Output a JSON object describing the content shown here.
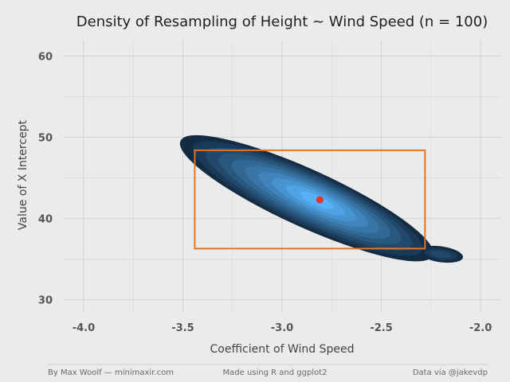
{
  "chart_data": {
    "type": "density",
    "title": "Density of Resampling of Height ~ Wind Speed (n = 100)",
    "xlabel": "Coefficient of Wind Speed",
    "ylabel": "Value of X Intercept",
    "xlim": [
      -4.1,
      -1.9
    ],
    "ylim": [
      28.5,
      62
    ],
    "x_ticks": [
      -4.0,
      -3.5,
      -3.0,
      -2.5,
      -2.0
    ],
    "x_tick_labels": [
      "-4.0",
      "-3.5",
      "-3.0",
      "-2.5",
      "-2.0"
    ],
    "y_ticks": [
      30,
      40,
      50,
      60
    ],
    "y_tick_labels": [
      "30",
      "40",
      "50",
      "60"
    ],
    "grid": true,
    "point_estimate": {
      "x": -2.81,
      "y": 42.3
    },
    "interval_box": {
      "x_min": -3.44,
      "x_max": -2.28,
      "y_min": 36.3,
      "y_max": 48.4
    },
    "density_center": {
      "x": -2.82,
      "y": 42.2
    },
    "colors": {
      "background": "#ebebeb",
      "grid": "#d2d2d2",
      "box": "#e8731e",
      "point": "#e5352b",
      "density_low": "#132b43",
      "density_high": "#56b1f7"
    }
  },
  "footer": {
    "left": "By Max Woolf — minimaxir.com",
    "center": "Made using R and ggplot2",
    "right": "Data via @jakevdp"
  }
}
